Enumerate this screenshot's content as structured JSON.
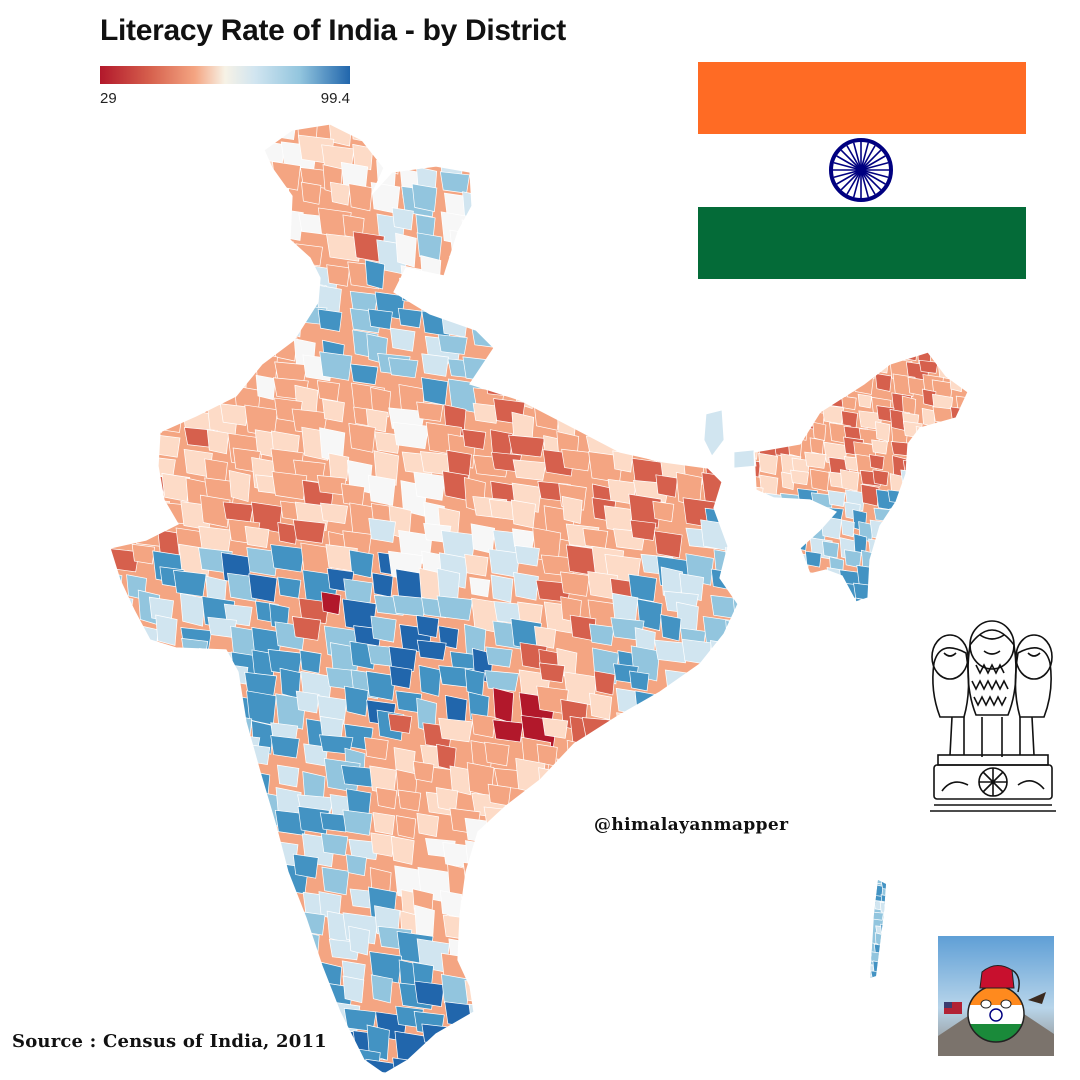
{
  "map": {
    "title": "Literacy Rate of India - by District",
    "legend": {
      "min": "29",
      "max": "99.4",
      "min_value": 29,
      "max_value": 99.4,
      "colors": [
        "#b2182b",
        "#d6604d",
        "#f4a582",
        "#fddbc7",
        "#f7f7f7",
        "#d1e5f0",
        "#92c5de",
        "#4393c3",
        "#2166ac"
      ]
    },
    "credit": "@himalayanmapper",
    "source": "Source : Census of India, 2011"
  },
  "flag": {
    "saffron": "#ff6b24",
    "white": "#ffffff",
    "green": "#046b38",
    "chakra_color": "#000080"
  },
  "icons": [
    "india-flag",
    "ashoka-chakra-icon",
    "state-emblem-lion-capital",
    "countryball-avatar"
  ]
}
